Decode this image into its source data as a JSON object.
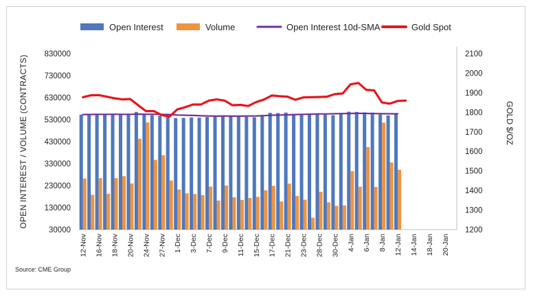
{
  "chart_data": {
    "type": "bar+line",
    "source": "Source: CME Group",
    "legend": [
      {
        "name": "Open Interest",
        "kind": "bar",
        "color": "#4f78bd"
      },
      {
        "name": "Volume",
        "kind": "bar",
        "color": "#ee9440"
      },
      {
        "name": "Open Interest 10d-SMA",
        "kind": "line",
        "color": "#7030a0"
      },
      {
        "name": "Gold Spot",
        "kind": "line",
        "color": "#e8151b"
      }
    ],
    "legend_position": "top",
    "y_left": {
      "label": "OPEN INTEREST / VOLUME (CONTRACTS)",
      "ylim": [
        30000,
        830000
      ],
      "ticks": [
        "30000",
        "130000",
        "230000",
        "330000",
        "430000",
        "530000",
        "630000",
        "730000",
        "830000"
      ]
    },
    "y_right": {
      "label": "GOLD $/OZ",
      "ylim": [
        1200,
        2100
      ],
      "ticks": [
        "1200",
        "1300",
        "1400",
        "1500",
        "1600",
        "1700",
        "1800",
        "1900",
        "2000",
        "2100"
      ]
    },
    "x_tick_labels": [
      "12-Nov",
      "16-Nov",
      "18-Nov",
      "20-Nov",
      "24-Nov",
      "27-Nov",
      "1-Dec",
      "3-Dec",
      "7-Dec",
      "9-Dec",
      "11-Dec",
      "15-Dec",
      "17-Dec",
      "21-Dec",
      "23-Dec",
      "28-Dec",
      "30-Dec",
      "4-Jan",
      "6-Jan",
      "8-Jan",
      "12-Jan",
      "14-Jan",
      "18-Jan",
      "20-Jan"
    ],
    "dates": [
      "12-Nov",
      "13-Nov",
      "16-Nov",
      "17-Nov",
      "18-Nov",
      "19-Nov",
      "20-Nov",
      "23-Nov",
      "24-Nov",
      "25-Nov",
      "27-Nov",
      "30-Nov",
      "1-Dec",
      "2-Dec",
      "3-Dec",
      "4-Dec",
      "7-Dec",
      "8-Dec",
      "9-Dec",
      "10-Dec",
      "11-Dec",
      "14-Dec",
      "15-Dec",
      "16-Dec",
      "17-Dec",
      "18-Dec",
      "21-Dec",
      "22-Dec",
      "23-Dec",
      "24-Dec",
      "28-Dec",
      "29-Dec",
      "30-Dec",
      "31-Dec",
      "4-Jan",
      "5-Jan",
      "6-Jan",
      "7-Jan",
      "8-Jan",
      "11-Jan",
      "12-Jan",
      "13-Jan",
      "14-Jan",
      "15-Jan",
      "18-Jan",
      "19-Jan",
      "20-Jan",
      "21-Jan"
    ],
    "series": [
      {
        "name": "Open Interest",
        "values": [
          553000,
          551000,
          554000,
          552000,
          556000,
          554000,
          553000,
          565000,
          553000,
          550000,
          548000,
          543000,
          537000,
          538000,
          540000,
          539000,
          542000,
          545000,
          547000,
          544000,
          543000,
          543000,
          541000,
          550000,
          561000,
          560000,
          562000,
          556000,
          555000,
          557000,
          558000,
          553000,
          550000,
          560000,
          566000,
          565000,
          563000,
          562000,
          553000,
          549000,
          556000,
          null,
          null,
          null,
          null,
          null,
          null,
          null
        ]
      },
      {
        "name": "Volume",
        "values": [
          262000,
          188000,
          264000,
          193000,
          264000,
          273000,
          240000,
          443000,
          517000,
          347000,
          368000,
          253000,
          212000,
          195000,
          192000,
          187000,
          226000,
          162000,
          231000,
          177000,
          165000,
          174000,
          179000,
          209000,
          229000,
          158000,
          239000,
          183000,
          166000,
          84000,
          202000,
          154000,
          138000,
          140000,
          296000,
          225000,
          405000,
          224000,
          516000,
          335000,
          302000,
          null,
          null,
          null,
          null,
          null,
          null,
          null
        ]
      },
      {
        "name": "Open Interest 10d-SMA",
        "values": [
          553000,
          553500,
          554000,
          554000,
          554500,
          554000,
          554000,
          555000,
          554500,
          554500,
          554000,
          553000,
          551000,
          550000,
          549000,
          547500,
          546500,
          546000,
          546500,
          546000,
          546000,
          546500,
          547000,
          548000,
          550000,
          551000,
          552000,
          553000,
          554000,
          555000,
          556000,
          556000,
          557000,
          557500,
          558000,
          558500,
          558000,
          557500,
          557000,
          556500,
          556500,
          null,
          null,
          null,
          null,
          null,
          null,
          null
        ]
      },
      {
        "name": "Gold Spot",
        "values": [
          1877,
          1887,
          1888,
          1880,
          1872,
          1866,
          1868,
          1837,
          1806,
          1806,
          1786,
          1778,
          1815,
          1826,
          1840,
          1840,
          1860,
          1866,
          1860,
          1836,
          1838,
          1832,
          1852,
          1865,
          1886,
          1882,
          1880,
          1864,
          1876,
          1877,
          1878,
          1880,
          1893,
          1896,
          1943,
          1950,
          1915,
          1912,
          1850,
          1844,
          1858,
          1860,
          null,
          null,
          null,
          null,
          null,
          null
        ]
      }
    ]
  }
}
